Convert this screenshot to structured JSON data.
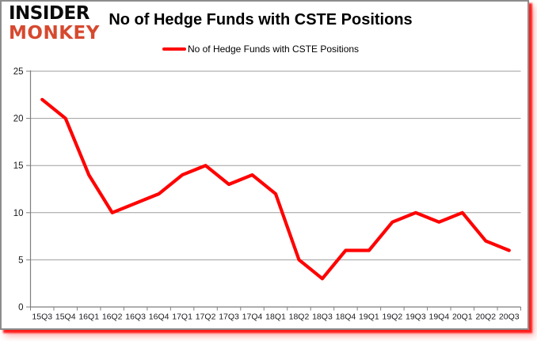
{
  "logo": {
    "top": "INSIDER",
    "bottom": "MONKEY"
  },
  "title": "No of Hedge Funds with CSTE Positions",
  "legend": {
    "label": "No of Hedge Funds with CSTE Positions"
  },
  "colors": {
    "series": "#ff0000",
    "grid": "#9d9d9d",
    "axis": "#7f7f7f",
    "tick_text": "#1a1a1f",
    "title_text": "#000000",
    "logo_top": "#0a0a0a",
    "logo_bottom": "#d6492f",
    "frame_border": "#8c8c8c",
    "frame_shadow": "#ff0000"
  },
  "chart_data": {
    "type": "line",
    "title": "No of Hedge Funds with CSTE Positions",
    "categories": [
      "15Q3",
      "15Q4",
      "16Q1",
      "16Q2",
      "16Q3",
      "16Q4",
      "17Q1",
      "17Q2",
      "17Q3",
      "17Q4",
      "18Q1",
      "18Q2",
      "18Q3",
      "18Q4",
      "19Q1",
      "19Q2",
      "19Q3",
      "19Q4",
      "20Q1",
      "20Q2",
      "20Q3"
    ],
    "series": [
      {
        "name": "No of Hedge Funds with CSTE Positions",
        "color": "#ff0000",
        "values": [
          22,
          20,
          14,
          10,
          11,
          12,
          14,
          15,
          13,
          14,
          12,
          5,
          3,
          6,
          6,
          9,
          10,
          9,
          10,
          7,
          6
        ]
      }
    ],
    "xlabel": "",
    "ylabel": "",
    "ylim": [
      0,
      25
    ],
    "yticks": [
      0,
      5,
      10,
      15,
      20,
      25
    ],
    "grid": true,
    "legend_position": "top"
  }
}
